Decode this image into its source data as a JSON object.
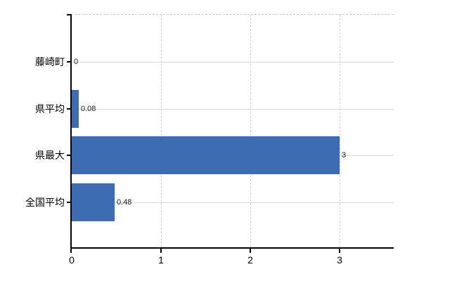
{
  "chart_data": {
    "type": "bar",
    "orientation": "horizontal",
    "categories": [
      "藤崎町",
      "県平均",
      "県最大",
      "全国平均"
    ],
    "values": [
      0,
      0.08,
      3,
      0.48
    ],
    "value_labels": [
      "0",
      "0.08",
      "3",
      "0.48"
    ],
    "x_ticks": [
      0,
      1,
      2,
      3
    ],
    "x_tick_labels": [
      "0",
      "1",
      "2",
      "3"
    ],
    "xlim": [
      0,
      3.6
    ],
    "title": "",
    "xlabel": "",
    "ylabel": "",
    "grid": "horizontal solid per category, vertical dashed at 1,2,3, dashed top border",
    "legend": "none",
    "colors": {
      "bar": "#3d6cb2",
      "axis": "#000000",
      "hgrid": "#d4d9d4",
      "vgrid": "#d2d2d2",
      "top_border": "#cbcbcb",
      "text": "#000000",
      "value_text": "#1c1c1c",
      "background": "#ffffff"
    }
  }
}
